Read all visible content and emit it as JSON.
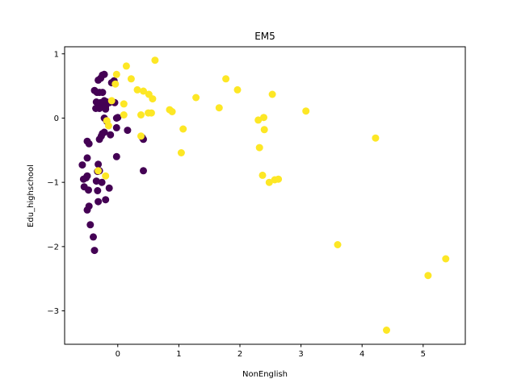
{
  "chart_data": {
    "type": "scatter",
    "title": "EM5",
    "xlabel": "NonEnglish",
    "ylabel": "Edu_highschool",
    "xlim": [
      -0.87,
      5.69
    ],
    "ylim": [
      -3.52,
      1.11
    ],
    "xticks": [
      0,
      1,
      2,
      3,
      4,
      5
    ],
    "yticks": [
      -3,
      -2,
      -1,
      0,
      1
    ],
    "grid": false,
    "legend": "none",
    "colors": {
      "cluster_0": "#440154",
      "cluster_1": "#fde725"
    },
    "series": [
      {
        "color": "#440154",
        "points": [
          [
            -0.25,
            0.67
          ],
          [
            -0.22,
            0.68
          ],
          [
            -0.28,
            0.62
          ],
          [
            -0.32,
            0.59
          ],
          [
            -0.06,
            0.58
          ],
          [
            -0.1,
            0.55
          ],
          [
            -0.38,
            0.43
          ],
          [
            -0.3,
            0.4
          ],
          [
            -0.25,
            0.4
          ],
          [
            -0.34,
            0.4
          ],
          [
            -0.35,
            0.25
          ],
          [
            -0.28,
            0.24
          ],
          [
            -0.22,
            0.27
          ],
          [
            -0.18,
            0.25
          ],
          [
            -0.32,
            0.19
          ],
          [
            -0.24,
            0.2
          ],
          [
            -0.2,
            0.18
          ],
          [
            -0.14,
            0.24
          ],
          [
            -0.05,
            0.24
          ],
          [
            -0.3,
            0.15
          ],
          [
            -0.36,
            0.15
          ],
          [
            -0.2,
            0.14
          ],
          [
            -0.02,
            0.0
          ],
          [
            0.0,
            0.01
          ],
          [
            -0.22,
            0.0
          ],
          [
            -0.18,
            -0.05
          ],
          [
            -0.02,
            -0.15
          ],
          [
            0.16,
            -0.19
          ],
          [
            -0.25,
            -0.24
          ],
          [
            -0.22,
            -0.22
          ],
          [
            -0.27,
            -0.28
          ],
          [
            -0.12,
            -0.26
          ],
          [
            0.4,
            -0.3
          ],
          [
            0.42,
            -0.33
          ],
          [
            -0.3,
            -0.33
          ],
          [
            -0.5,
            -0.36
          ],
          [
            -0.47,
            -0.4
          ],
          [
            -0.02,
            -0.6
          ],
          [
            -0.5,
            -0.62
          ],
          [
            -0.58,
            -0.73
          ],
          [
            -0.32,
            -0.72
          ],
          [
            -0.3,
            -0.82
          ],
          [
            -0.33,
            -0.83
          ],
          [
            0.42,
            -0.82
          ],
          [
            -0.52,
            -0.93
          ],
          [
            -0.5,
            -0.9
          ],
          [
            -0.56,
            -0.95
          ],
          [
            -0.35,
            -0.98
          ],
          [
            -0.26,
            -1.0
          ],
          [
            -0.14,
            -1.09
          ],
          [
            -0.55,
            -1.07
          ],
          [
            -0.48,
            -1.12
          ],
          [
            -0.33,
            -1.13
          ],
          [
            -0.2,
            -1.27
          ],
          [
            -0.47,
            -1.37
          ],
          [
            -0.5,
            -1.43
          ],
          [
            -0.32,
            -1.3
          ],
          [
            -0.45,
            -1.66
          ],
          [
            -0.4,
            -1.85
          ],
          [
            -0.38,
            -2.06
          ]
        ]
      },
      {
        "color": "#fde725",
        "points": [
          [
            0.61,
            0.9
          ],
          [
            0.14,
            0.81
          ],
          [
            0.22,
            0.61
          ],
          [
            1.77,
            0.61
          ],
          [
            -0.02,
            0.68
          ],
          [
            -0.04,
            0.53
          ],
          [
            0.32,
            0.44
          ],
          [
            0.42,
            0.42
          ],
          [
            1.96,
            0.44
          ],
          [
            0.51,
            0.37
          ],
          [
            2.53,
            0.37
          ],
          [
            0.57,
            0.3
          ],
          [
            1.28,
            0.32
          ],
          [
            -0.1,
            0.27
          ],
          [
            0.1,
            0.22
          ],
          [
            1.66,
            0.16
          ],
          [
            0.85,
            0.13
          ],
          [
            0.89,
            0.1
          ],
          [
            3.08,
            0.11
          ],
          [
            0.38,
            0.05
          ],
          [
            0.5,
            0.08
          ],
          [
            0.55,
            0.08
          ],
          [
            0.1,
            0.05
          ],
          [
            2.39,
            0.01
          ],
          [
            2.3,
            -0.03
          ],
          [
            -0.18,
            -0.04
          ],
          [
            -0.15,
            -0.12
          ],
          [
            1.07,
            -0.17
          ],
          [
            2.4,
            -0.18
          ],
          [
            0.38,
            -0.28
          ],
          [
            4.22,
            -0.31
          ],
          [
            2.32,
            -0.46
          ],
          [
            1.04,
            -0.54
          ],
          [
            -0.32,
            -0.82
          ],
          [
            -0.2,
            -0.9
          ],
          [
            2.37,
            -0.89
          ],
          [
            2.57,
            -0.96
          ],
          [
            2.63,
            -0.95
          ],
          [
            2.48,
            -1.0
          ],
          [
            3.6,
            -1.97
          ],
          [
            5.37,
            -2.19
          ],
          [
            5.08,
            -2.45
          ],
          [
            4.4,
            -3.3
          ]
        ]
      }
    ]
  }
}
